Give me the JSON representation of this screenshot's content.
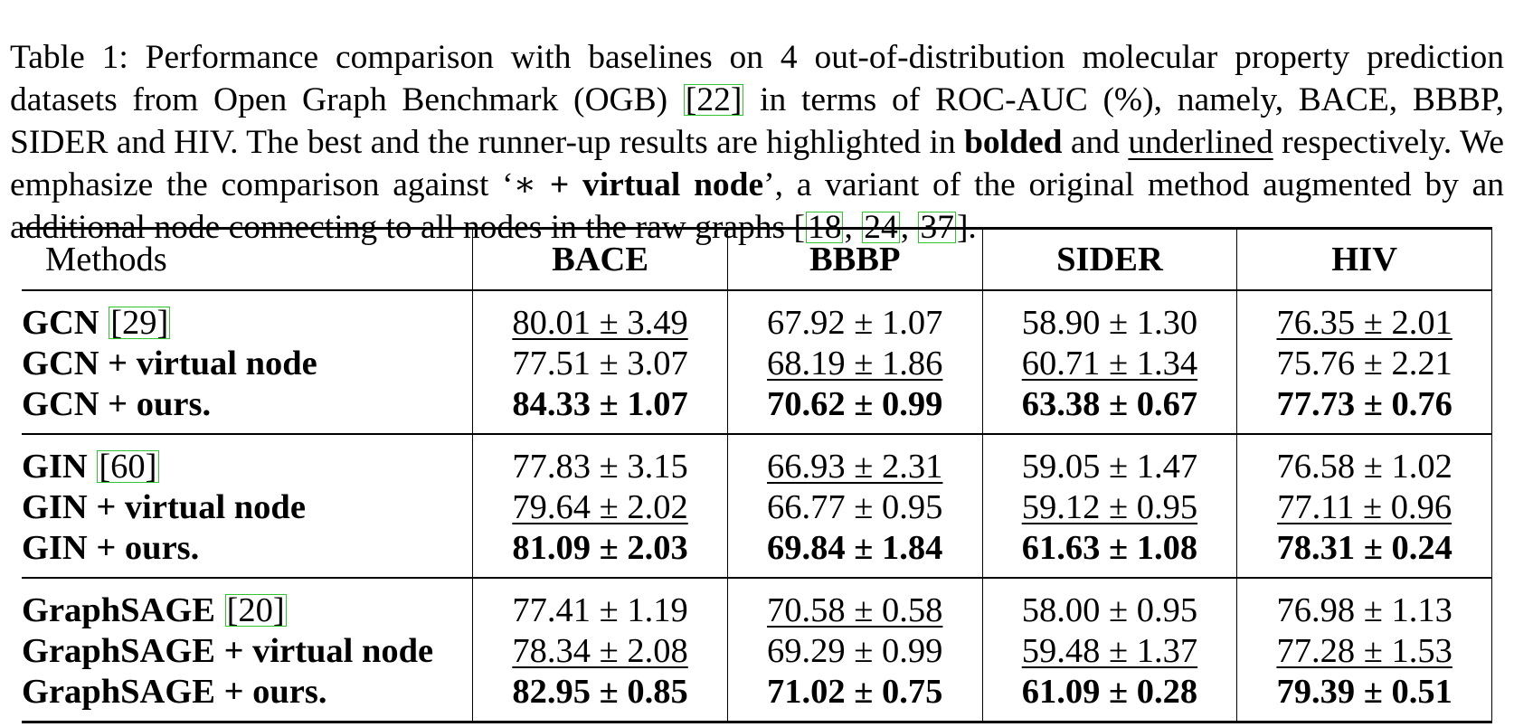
{
  "caption": {
    "label": "Table 1:",
    "text_1": "Performance comparison with baselines on 4 out-of-distribution molecular property prediction datasets from Open Graph Benchmark (OGB) ",
    "cite_1": "[22]",
    "text_2": " in terms of ROC-AUC (%), namely, BACE, BBBP, SIDER and HIV. The best and the runner-up results are highlighted in ",
    "bolded": "bolded",
    "text_3": " and ",
    "underlined": "underlined",
    "text_4": " respectively.  We emphasize the comparison against ‘",
    "star": "∗",
    "virtual_node_phrase": " + virtual node",
    "text_5": "’, a variant of the original method augmented by an additional node connecting to all nodes in the raw graphs ",
    "cite_open": "[",
    "cite_a": "18",
    "cite_sep1": ", ",
    "cite_b": "24",
    "cite_sep2": ", ",
    "cite_c": "37",
    "cite_close": "]."
  },
  "table": {
    "header": {
      "methods": "Methods",
      "datasets": [
        "BACE",
        "BBBP",
        "SIDER",
        "HIV"
      ]
    },
    "groups": [
      {
        "rows": [
          {
            "name": "GCN",
            "cite": "[29]",
            "values": [
              "80.01 ± 3.49",
              "67.92 ± 1.07",
              "58.90 ± 1.30",
              "76.35 ± 2.01"
            ]
          },
          {
            "name": "GCN + virtual node",
            "values": [
              "77.51 ± 3.07",
              "68.19 ± 1.86",
              "60.71 ± 1.34",
              "75.76 ± 2.21"
            ]
          },
          {
            "name": "GCN + ours.",
            "values": [
              "84.33 ± 1.07",
              "70.62 ± 0.99",
              "63.38 ± 0.67",
              "77.73 ± 0.76"
            ]
          }
        ]
      },
      {
        "rows": [
          {
            "name": "GIN",
            "cite": "[60]",
            "values": [
              "77.83 ± 3.15",
              "66.93 ± 2.31",
              "59.05 ± 1.47",
              "76.58 ± 1.02"
            ]
          },
          {
            "name": "GIN + virtual node",
            "values": [
              "79.64 ± 2.02",
              "66.77 ± 0.95",
              "59.12 ± 0.95",
              "77.11 ± 0.96"
            ]
          },
          {
            "name": "GIN + ours.",
            "values": [
              "81.09 ± 2.03",
              "69.84 ± 1.84",
              "61.63 ± 1.08",
              "78.31 ± 0.24"
            ]
          }
        ]
      },
      {
        "rows": [
          {
            "name": "GraphSAGE",
            "cite": "[20]",
            "values": [
              "77.41 ± 1.19",
              "70.58 ± 0.58",
              "58.00 ± 0.95",
              "76.98 ± 1.13"
            ]
          },
          {
            "name": "GraphSAGE + virtual node",
            "values": [
              "78.34 ± 2.08",
              "69.29 ± 0.99",
              "59.48 ± 1.37",
              "77.28 ± 1.53"
            ]
          },
          {
            "name": "GraphSAGE + ours.",
            "values": [
              "82.95 ± 0.85",
              "71.02 ± 0.75",
              "61.09 ± 0.28",
              "79.39 ± 0.51"
            ]
          }
        ]
      }
    ]
  }
}
